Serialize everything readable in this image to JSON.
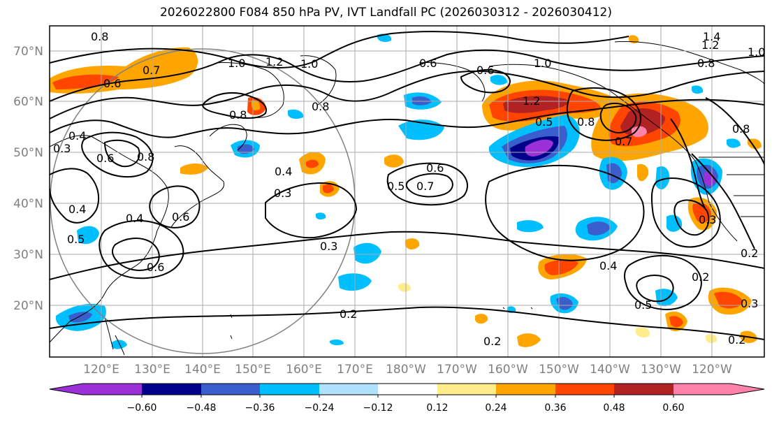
{
  "title": "2026022800 F084 850 hPa PV, IVT Landfall PC (2026030312 - 2026030412)",
  "lat_labels": [
    "70°N",
    "60°N",
    "50°N",
    "40°N",
    "30°N",
    "20°N"
  ],
  "lon_labels": [
    "120°E",
    "130°E",
    "140°E",
    "150°E",
    "160°E",
    "170°E",
    "180°W",
    "170°W",
    "160°W",
    "150°W",
    "140°W",
    "130°W",
    "120°W"
  ],
  "colorbar": {
    "ticks": [
      "−0.60",
      "−0.48",
      "−0.36",
      "−0.24",
      "−0.12",
      "0.12",
      "0.24",
      "0.36",
      "0.48",
      "0.60"
    ],
    "colors": [
      "#9b30d9",
      "#00008b",
      "#3a5fcd",
      "#00bfff",
      "#b0e2ff",
      "#ffffff",
      "#ffec8b",
      "#ffa500",
      "#ff4500",
      "#b22222",
      "#ff82ab"
    ]
  },
  "contour_labels": [
    "0.8",
    "0.6",
    "0.7",
    "1.0",
    "1.2",
    "1.0",
    "0.8",
    "0.4",
    "0.3",
    "0.8",
    "0.6",
    "0.4",
    "0.6",
    "0.8",
    "0.4",
    "0.5",
    "0.6",
    "0.4",
    "0.3",
    "0.3",
    "0.6",
    "0.7",
    "0.5",
    "0.6",
    "1.0",
    "0.5",
    "1.2",
    "0.8",
    "0.7",
    "1.4",
    "1.2",
    "1.0",
    "0.8",
    "0.8",
    "0.4",
    "0.3",
    "0.2",
    "0.2",
    "0.5",
    "0.2",
    "0.3",
    "0.2",
    "0.2",
    "0.6"
  ]
}
